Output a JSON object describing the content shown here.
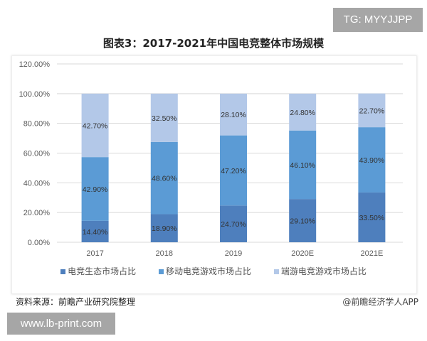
{
  "watermark_top": "TG: MYYJJPP",
  "watermark_bottom": "www.lb-print.com",
  "source": "资料来源：前瞻产业研究院整理",
  "credit": "@前瞻经济学人APP",
  "chart_data": {
    "type": "bar",
    "stacked": true,
    "title": "图表3：2017-2021年中国电竞整体市场规模",
    "categories": [
      "2017",
      "2018",
      "2019",
      "2020E",
      "2021E"
    ],
    "ylim": [
      0,
      120
    ],
    "yticks": [
      "0.00%",
      "20.00%",
      "40.00%",
      "60.00%",
      "80.00%",
      "100.00%",
      "120.00%"
    ],
    "grid": true,
    "legend": "bottom",
    "series": [
      {
        "name": "电竞生态市场占比",
        "values": [
          14.4,
          18.9,
          24.7,
          29.1,
          33.5
        ],
        "labels": [
          "14.40%",
          "18.90%",
          "24.70%",
          "29.10%",
          "33.50%"
        ],
        "color": "#4e7fbd"
      },
      {
        "name": "移动电竞游戏市场占比",
        "values": [
          42.9,
          48.6,
          47.2,
          46.1,
          43.9
        ],
        "labels": [
          "42.90%",
          "48.60%",
          "47.20%",
          "46.10%",
          "43.90%"
        ],
        "color": "#5b9bd5"
      },
      {
        "name": "端游电竞游戏市场占比",
        "values": [
          42.7,
          32.5,
          28.1,
          24.8,
          22.7
        ],
        "labels": [
          "42.70%",
          "32.50%",
          "28.10%",
          "24.80%",
          "22.70%"
        ],
        "color": "#b3c8e8"
      }
    ]
  }
}
